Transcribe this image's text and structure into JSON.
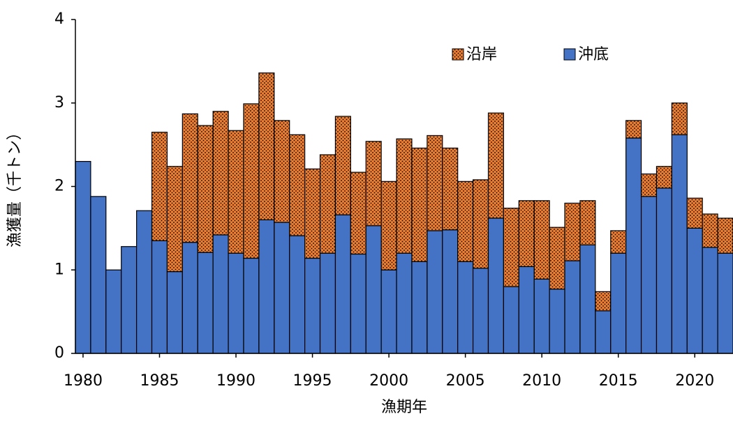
{
  "chart_data": {
    "type": "stacked_bar",
    "y_label": "漁獲量（千トン）",
    "x_label": "漁期年",
    "categories": [
      "1980",
      null,
      null,
      null,
      null,
      "1985",
      null,
      null,
      null,
      null,
      "1990",
      null,
      null,
      null,
      null,
      "1995",
      null,
      null,
      null,
      null,
      "2000",
      null,
      null,
      null,
      null,
      "2005",
      null,
      null,
      null,
      null,
      "2010",
      null,
      null,
      null,
      null,
      "2015",
      null,
      null,
      null,
      null,
      "2020",
      null,
      null
    ],
    "series": [
      {
        "name": "沖底",
        "color": "#4472c4",
        "values": [
          2.3,
          1.88,
          1.0,
          1.28,
          1.71,
          1.35,
          0.98,
          1.33,
          1.21,
          1.42,
          1.2,
          1.14,
          1.6,
          1.57,
          1.41,
          1.14,
          1.2,
          1.66,
          1.19,
          1.53,
          1.0,
          1.2,
          1.1,
          1.47,
          1.48,
          1.1,
          1.02,
          1.62,
          0.8,
          1.04,
          0.89,
          0.77,
          1.11,
          1.3,
          0.51,
          1.2,
          2.58,
          1.88,
          1.98,
          2.62,
          1.5,
          1.27,
          1.2
        ]
      },
      {
        "name": "沿岸",
        "color": "#ed7d31",
        "pattern": "dots",
        "values": [
          0,
          0,
          0,
          0,
          0,
          1.3,
          1.26,
          1.54,
          1.52,
          1.48,
          1.47,
          1.85,
          1.76,
          1.22,
          1.21,
          1.07,
          1.18,
          1.18,
          0.98,
          1.01,
          1.06,
          1.37,
          1.36,
          1.14,
          0.98,
          0.96,
          1.06,
          1.26,
          0.94,
          0.79,
          0.94,
          0.74,
          0.69,
          0.53,
          0.23,
          0.27,
          0.21,
          0.27,
          0.26,
          0.38,
          0.36,
          0.4,
          0.42
        ]
      }
    ],
    "ylim": [
      0,
      4
    ],
    "yticks": [
      0,
      1,
      2,
      3,
      4
    ],
    "grid": false,
    "legend": "top-right"
  }
}
